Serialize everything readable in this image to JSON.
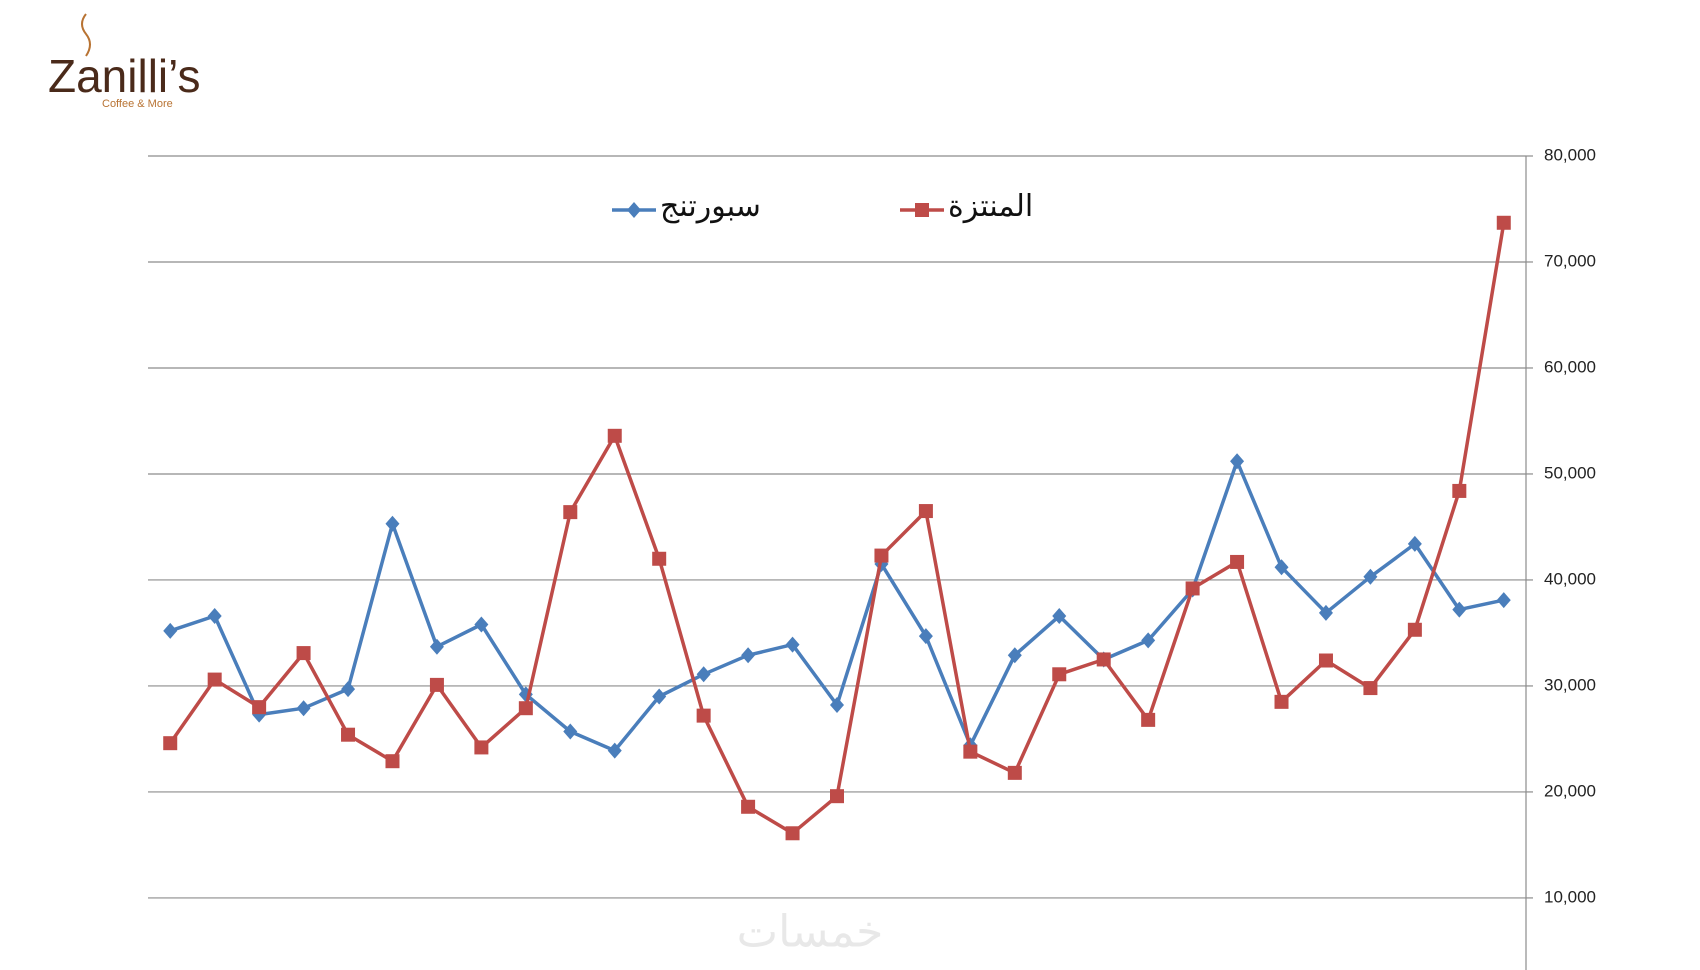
{
  "logo": {
    "name": "Zanilli’s",
    "tagline": "Coffee & More"
  },
  "watermark": "خمسات",
  "chart_data": {
    "type": "line",
    "categories": [
      null,
      null,
      null,
      null,
      null,
      null,
      null,
      null,
      null,
      null,
      null,
      null,
      null,
      null,
      null,
      null,
      null,
      null,
      null,
      null,
      null,
      null,
      null,
      null,
      null,
      null,
      null,
      null,
      null,
      null,
      null
    ],
    "series": [
      {
        "name": "سبورتنج",
        "color": "#4a7ebb",
        "marker": "diamond",
        "values": [
          35200,
          36600,
          27300,
          27900,
          29700,
          45300,
          33700,
          35800,
          29200,
          25700,
          23900,
          29000,
          31100,
          32900,
          33900,
          28200,
          41500,
          34700,
          24400,
          32900,
          36600,
          32500,
          34300,
          39100,
          51200,
          41200,
          36900,
          40300,
          43400,
          37200,
          38100
        ]
      },
      {
        "name": "المنتزة",
        "color": "#be4b48",
        "marker": "square",
        "values": [
          24600,
          30600,
          28000,
          33100,
          25400,
          22900,
          30100,
          24200,
          27900,
          46400,
          53600,
          42000,
          27200,
          18600,
          16100,
          19600,
          42300,
          46500,
          23800,
          21800,
          31100,
          32500,
          26800,
          39200,
          41700,
          28500,
          32400,
          29800,
          35300,
          48400,
          73700
        ]
      }
    ],
    "ylim": [
      3200,
      80000
    ],
    "yticks": [
      {
        "value": 10000,
        "label": "10,000"
      },
      {
        "value": 20000,
        "label": "20,000"
      },
      {
        "value": 30000,
        "label": "30,000"
      },
      {
        "value": 40000,
        "label": "40,000"
      },
      {
        "value": 50000,
        "label": "50,000"
      },
      {
        "value": 60000,
        "label": "60,000"
      },
      {
        "value": 70000,
        "label": "70,000"
      },
      {
        "value": 80000,
        "label": "80,000"
      }
    ],
    "y_axis_side": "right",
    "grid": true,
    "legend": "top"
  }
}
